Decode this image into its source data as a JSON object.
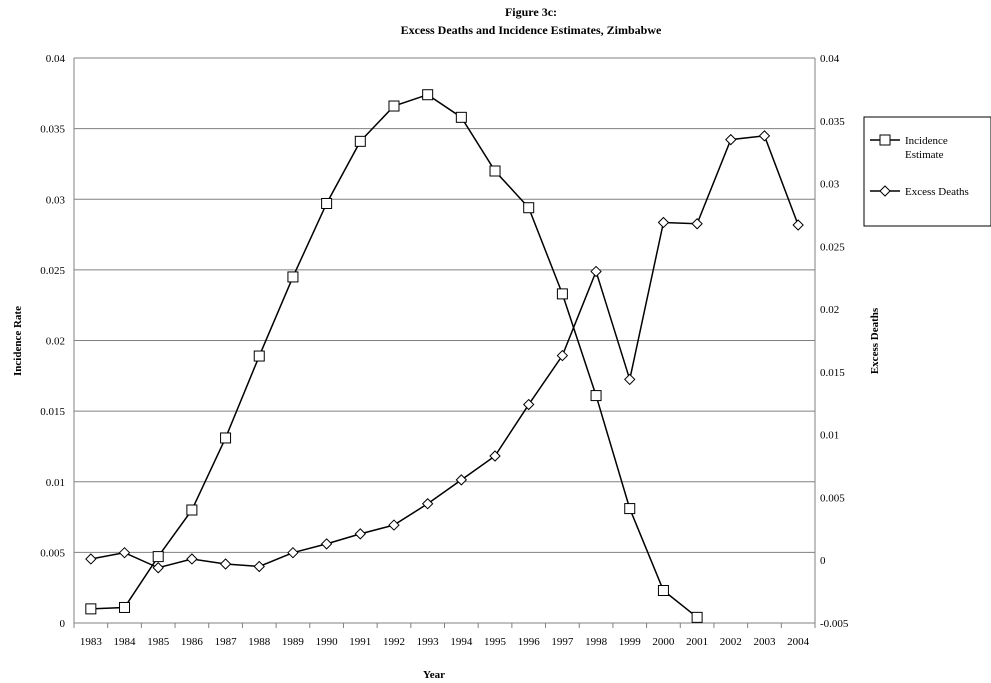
{
  "chart_data": {
    "type": "line",
    "title": "Figure 3c:",
    "subtitle": "Excess Deaths and Incidence Estimates, Zimbabwe",
    "xlabel": "Year",
    "ylabel_left": "Incidence Rate",
    "ylabel_right": "Excess Deaths",
    "ylim_left": [
      0,
      0.04
    ],
    "ylim_right": [
      -0.005,
      0.04
    ],
    "yticks_left": [
      "0",
      "0.005",
      "0.01",
      "0.015",
      "0.02",
      "0.025",
      "0.03",
      "0.035",
      "0.04"
    ],
    "yticks_right": [
      "-0.005",
      "0",
      "0.005",
      "0.01",
      "0.015",
      "0.02",
      "0.025",
      "0.03",
      "0.035",
      "0.04"
    ],
    "categories": [
      "1983",
      "1984",
      "1985",
      "1986",
      "1987",
      "1988",
      "1989",
      "1990",
      "1991",
      "1992",
      "1993",
      "1994",
      "1995",
      "1996",
      "1997",
      "1998",
      "1999",
      "2000",
      "2001",
      "2002",
      "2003",
      "2004"
    ],
    "grid": true,
    "legend_position": "right",
    "series": [
      {
        "name": "Incidence Estimate",
        "axis": "left",
        "marker": "square",
        "color": "#000000",
        "values": [
          0.001,
          0.0011,
          0.0047,
          0.008,
          0.0131,
          0.0189,
          0.0245,
          0.0297,
          0.0341,
          0.0366,
          0.0374,
          0.0358,
          0.032,
          0.0294,
          0.0233,
          0.0161,
          0.0081,
          0.0023,
          0.0004,
          null,
          null,
          null
        ]
      },
      {
        "name": "Excess Deaths",
        "axis": "right",
        "marker": "diamond",
        "color": "#000000",
        "values": [
          0.0001,
          0.0006,
          -0.0006,
          0.0001,
          -0.0003,
          -0.0005,
          0.0006,
          0.0013,
          0.0021,
          0.0028,
          0.0045,
          0.0064,
          0.0083,
          0.0124,
          0.0163,
          0.023,
          0.0144,
          0.0269,
          0.0268,
          0.0335,
          0.0338,
          0.0267
        ]
      }
    ]
  }
}
